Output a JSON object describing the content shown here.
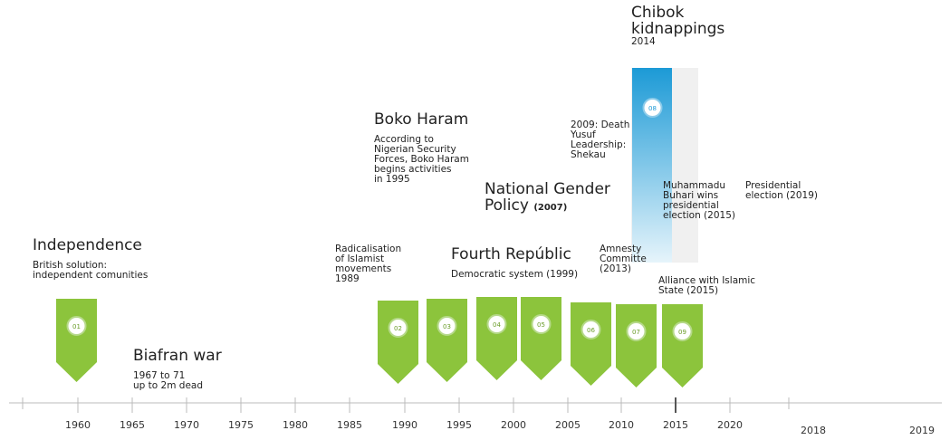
{
  "events": [
    {
      "title": "Independence",
      "lines": [
        "British solution:",
        "independent comunities"
      ]
    },
    {
      "title": "Biafran war",
      "lines": [
        "1967 to 71",
        "up to 2m dead"
      ]
    },
    {
      "lines": [
        "Radicalisation",
        "of Islamist",
        "movements",
        "1989"
      ]
    },
    {
      "title": "Boko Haram",
      "lines": [
        "According to",
        "Nigerian Security",
        "Forces, Boko Haram",
        "begins activities",
        "in 1995"
      ]
    },
    {
      "title": "National Gender",
      "title2": "Policy",
      "note": "(2007)"
    },
    {
      "title": "Fourth Repúblic",
      "lines": [
        "Democratic system (1999)"
      ]
    },
    {
      "lines": [
        "2009: Death",
        "Yusuf",
        "Leadership:",
        "Shekau"
      ]
    },
    {
      "title": "Chibok",
      "title2": "kidnappings",
      "lines": [
        "2014"
      ]
    },
    {
      "lines": [
        "Muhammadu",
        "Buhari wins",
        "presidential",
        "election (2015)"
      ]
    },
    {
      "lines": [
        "Presidential",
        "election (2019)"
      ]
    },
    {
      "lines": [
        "Amnesty",
        "Committe",
        "(2013)"
      ]
    },
    {
      "lines": [
        "Alliance with Islamic",
        "State (2015)"
      ]
    }
  ],
  "badges": [
    "01",
    "02",
    "03",
    "04",
    "05",
    "06",
    "07",
    "08",
    "09"
  ],
  "years": [
    "1960",
    "1965",
    "1970",
    "1975",
    "1980",
    "1985",
    "1990",
    "1995",
    "2000",
    "2005",
    "2010",
    "2015",
    "2020",
    "2018",
    "2019"
  ]
}
